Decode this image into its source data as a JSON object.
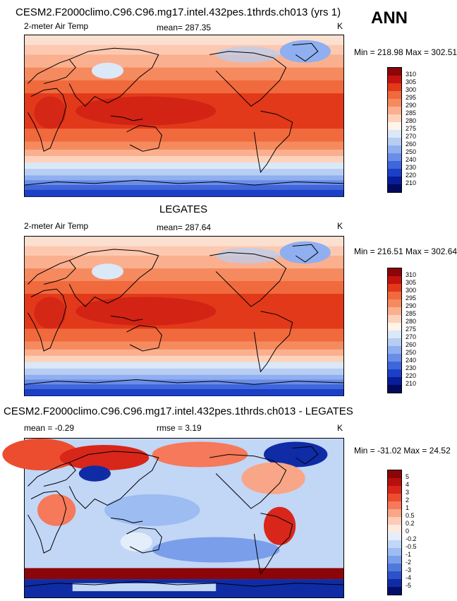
{
  "season": "ANN",
  "panels": [
    {
      "title": "CESM2.F2000climo.C96.C96.mg17.intel.432pes.1thrds.ch013 (yrs 1)",
      "left_label": "2-meter Air Temp",
      "center_label": "mean= 287.35",
      "units": "K",
      "minmax": "Min = 218.98 Max = 302.51",
      "colorbar": {
        "labels": [
          "310",
          "305",
          "300",
          "295",
          "290",
          "285",
          "280",
          "275",
          "270",
          "260",
          "250",
          "240",
          "230",
          "220",
          "210"
        ],
        "colors": [
          "#8c0508",
          "#c41210",
          "#e2391a",
          "#f06a3e",
          "#f68a5f",
          "#fab08f",
          "#fcd2bb",
          "#fff3ea",
          "#dbe8f8",
          "#b7cdf2",
          "#8faff0",
          "#6a8ee8",
          "#3f66da",
          "#1b3fc6",
          "#071d9a",
          "#020a5e"
        ]
      },
      "map_type": "model_temperature"
    },
    {
      "title": "LEGATES",
      "left_label": "2-meter Air Temp",
      "center_label": "mean= 287.64",
      "units": "K",
      "minmax": "Min = 216.51 Max = 302.64",
      "colorbar": {
        "labels": [
          "310",
          "305",
          "300",
          "295",
          "290",
          "285",
          "280",
          "275",
          "270",
          "260",
          "250",
          "240",
          "230",
          "220",
          "210"
        ],
        "colors": [
          "#8c0508",
          "#c41210",
          "#e2391a",
          "#f06a3e",
          "#f68a5f",
          "#fab08f",
          "#fcd2bb",
          "#fff3ea",
          "#dbe8f8",
          "#b7cdf2",
          "#8faff0",
          "#6a8ee8",
          "#3f66da",
          "#1b3fc6",
          "#071d9a",
          "#020a5e"
        ]
      },
      "map_type": "obs_temperature"
    },
    {
      "title": "CESM2.F2000climo.C96.C96.mg17.intel.432pes.1thrds.ch013 - LEGATES",
      "left_label": "mean = -0.29",
      "center_label": "rmse = 3.19",
      "units": "K",
      "minmax": "Min = -31.02 Max = 24.52",
      "colorbar": {
        "labels": [
          "5",
          "4",
          "3",
          "2",
          "1",
          "0.5",
          "0.2",
          "0",
          "-0.2",
          "-0.5",
          "-1",
          "-2",
          "-3",
          "-4",
          "-5"
        ],
        "colors": [
          "#8c0508",
          "#b5100e",
          "#d8261a",
          "#ec4d2f",
          "#f5795a",
          "#f9a588",
          "#fcccb6",
          "#fde9de",
          "#e4eefb",
          "#c2d6f6",
          "#9dbcf1",
          "#7a9eea",
          "#5079dc",
          "#2c51c8",
          "#0f2ca6",
          "#040f6a"
        ]
      },
      "map_type": "difference"
    }
  ]
}
